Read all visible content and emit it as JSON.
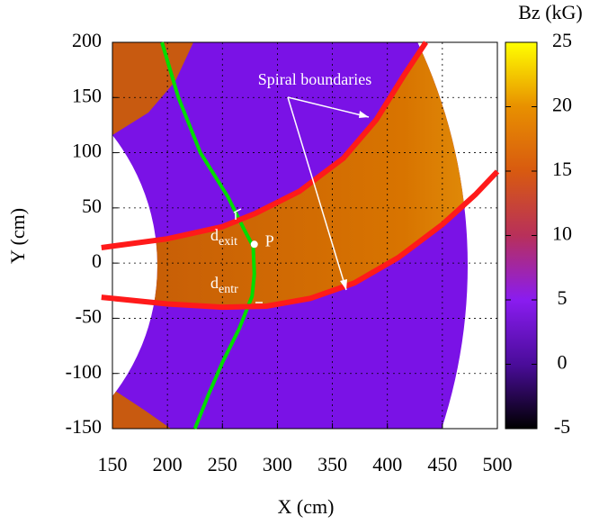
{
  "chart_data": {
    "type": "line",
    "xlabel": "X (cm)",
    "ylabel": "Y (cm)",
    "xlim": [
      150,
      500
    ],
    "ylim": [
      -150,
      200
    ],
    "xticks": [
      150,
      200,
      250,
      300,
      350,
      400,
      450,
      500
    ],
    "yticks": [
      -150,
      -100,
      -50,
      0,
      50,
      100,
      150,
      200
    ],
    "grid": true,
    "series": [
      {
        "color": "#00dd00",
        "x": [
          195,
          210,
          230,
          255,
          270,
          278,
          279,
          277,
          265,
          250,
          237,
          225
        ],
        "y": [
          200,
          150,
          100,
          60,
          30,
          15,
          -10,
          -30,
          -60,
          -90,
          -120,
          -150
        ]
      },
      {
        "color": "#ff1a1a",
        "x": [
          140,
          200,
          250,
          280,
          320,
          360,
          390,
          415,
          435
        ],
        "y": [
          14,
          22,
          33,
          45,
          65,
          95,
          130,
          170,
          200
        ]
      },
      {
        "color": "#ff1a1a",
        "x": [
          140,
          200,
          250,
          290,
          330,
          370,
          410,
          450,
          480,
          500
        ],
        "y": [
          -31,
          -37,
          -40,
          -39,
          -32,
          -18,
          5,
          35,
          62,
          83
        ]
      }
    ],
    "point": {
      "x": 279,
      "y": 17,
      "label": "P"
    },
    "annotations": {
      "spiral": "Spiral boundaries",
      "exit": {
        "base": "d",
        "sub": "exit"
      },
      "entr": {
        "base": "d",
        "sub": "entr"
      }
    },
    "colorbar": {
      "label": "Bz (kG)",
      "lim": [
        -5,
        25
      ],
      "ticks": [
        -5,
        0,
        5,
        10,
        15,
        20,
        25
      ],
      "colors": [
        "#000000",
        "#4a0c9a",
        "#8a1cf0",
        "#b8305a",
        "#d85a10",
        "#e89000",
        "#ffff00"
      ]
    }
  }
}
